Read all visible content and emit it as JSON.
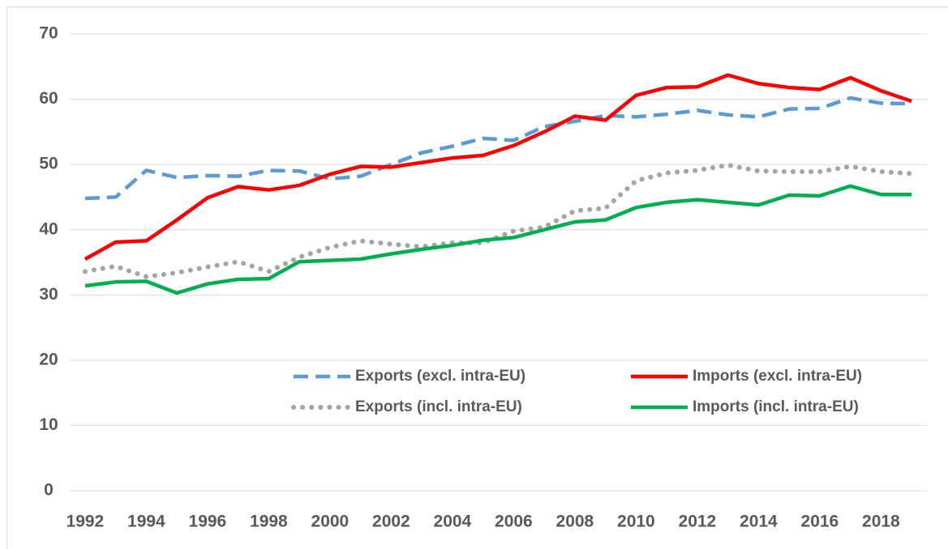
{
  "chart_data": {
    "type": "line",
    "x": [
      1992,
      1993,
      1994,
      1995,
      1996,
      1997,
      1998,
      1999,
      2000,
      2001,
      2002,
      2003,
      2004,
      2005,
      2006,
      2007,
      2008,
      2009,
      2010,
      2011,
      2012,
      2013,
      2014,
      2015,
      2016,
      2017,
      2018,
      2019
    ],
    "series": [
      {
        "name": "Exports (excl. intra-EU)",
        "color": "#5b9bd5",
        "dash": "dashed",
        "values": [
          44.8,
          45.0,
          49.1,
          48.0,
          48.3,
          48.2,
          49.1,
          49.0,
          47.8,
          48.2,
          50.0,
          51.8,
          52.8,
          54.0,
          53.7,
          55.8,
          56.6,
          57.5,
          57.3,
          57.7,
          58.3,
          57.6,
          57.3,
          58.5,
          58.6,
          60.2,
          59.4,
          59.3
        ]
      },
      {
        "name": "Imports (excl. intra-EU)",
        "color": "#ff0000",
        "dash": "solid",
        "values": [
          35.5,
          38.1,
          38.3,
          41.5,
          44.9,
          46.6,
          46.1,
          46.8,
          48.5,
          49.7,
          49.6,
          50.3,
          51.0,
          51.4,
          52.9,
          55.0,
          57.4,
          56.8,
          60.6,
          61.8,
          61.9,
          63.7,
          62.4,
          61.8,
          61.5,
          63.3,
          61.3,
          59.7
        ]
      },
      {
        "name": "Exports (incl. intra-EU)",
        "color": "#a5a5a5",
        "dash": "dotted",
        "values": [
          33.6,
          34.4,
          32.8,
          33.4,
          34.3,
          35.1,
          33.6,
          35.8,
          37.3,
          38.3,
          37.8,
          37.4,
          38.0,
          38.0,
          39.8,
          40.4,
          42.9,
          43.3,
          47.5,
          48.7,
          49.1,
          49.9,
          49.0,
          48.9,
          48.9,
          49.7,
          48.9,
          48.6
        ]
      },
      {
        "name": "Imports (incl. intra-EU)",
        "color": "#00b050",
        "dash": "solid",
        "values": [
          31.4,
          32.0,
          32.1,
          30.3,
          31.7,
          32.4,
          32.5,
          35.1,
          35.3,
          35.5,
          36.3,
          37.0,
          37.6,
          38.4,
          38.8,
          40.0,
          41.2,
          41.5,
          43.4,
          44.2,
          44.6,
          44.2,
          43.8,
          45.3,
          45.2,
          46.7,
          45.4,
          45.4
        ]
      }
    ],
    "xlim": [
      1991.5,
      2019.5
    ],
    "xticks": [
      1992,
      1994,
      1996,
      1998,
      2000,
      2002,
      2004,
      2006,
      2008,
      2010,
      2012,
      2014,
      2016,
      2018
    ],
    "ylim": [
      0,
      70
    ],
    "yticks": [
      0,
      10,
      20,
      30,
      40,
      50,
      60,
      70
    ],
    "grid": true
  }
}
